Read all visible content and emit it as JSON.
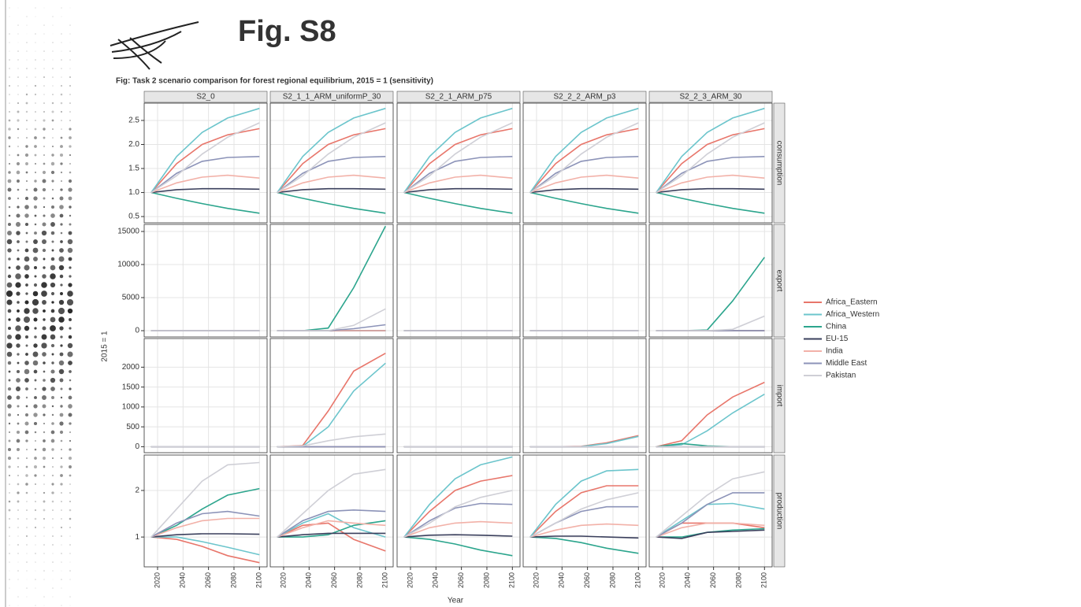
{
  "header": {
    "title": "Fig. S8"
  },
  "chart_data": {
    "type": "line",
    "title": "Fig: Task 2 scenario comparison for forest regional equilibrium, 2015 = 1 (sensitivity)",
    "ylabel": "2015 = 1",
    "xlabel": "Year",
    "grid": true,
    "legend": "right",
    "x": [
      2015,
      2035,
      2055,
      2075,
      2100
    ],
    "xlim": [
      2009.5,
      2106
    ],
    "xticks": [
      2020,
      2040,
      2060,
      2080,
      2100
    ],
    "columns": [
      "S2_0",
      "S2_1_1_ARM_uniformP_30",
      "S2_2_1_ARM_p75",
      "S2_2_2_ARM_p3",
      "S2_2_3_ARM_30"
    ],
    "rows": [
      {
        "name": "consumption",
        "ylim": [
          0.37,
          2.86
        ],
        "yticks": [
          0.5,
          {
            "value": 1,
            "label": "1.0"
          },
          1.5,
          {
            "value": 2,
            "label": "2.0"
          },
          2.5
        ]
      },
      {
        "name": "export",
        "ylim": [
          -950,
          16070
        ],
        "yticks": [
          0,
          5000,
          10000,
          15000
        ]
      },
      {
        "name": "import",
        "ylim": [
          -150,
          2720
        ],
        "yticks": [
          0,
          500,
          1000,
          1500,
          2000
        ]
      },
      {
        "name": "production",
        "ylim": [
          0.36,
          2.76
        ],
        "yticks": [
          1,
          2
        ]
      }
    ],
    "series": [
      {
        "name": "Africa_Eastern",
        "color": "#e8766b",
        "values": [
          [
            [
              1,
              1.6,
              2.0,
              2.2,
              2.33
            ],
            [
              1,
              1.6,
              2.0,
              2.2,
              2.33
            ],
            [
              1,
              1.6,
              2.0,
              2.2,
              2.33
            ],
            [
              1,
              1.6,
              2.0,
              2.2,
              2.33
            ],
            [
              1,
              1.6,
              2.0,
              2.2,
              2.33
            ]
          ],
          [
            [
              1,
              1,
              1,
              1,
              1
            ],
            [
              1,
              1,
              1,
              1,
              1
            ],
            [
              1,
              1,
              1,
              1,
              1
            ],
            [
              1,
              1,
              1,
              1,
              1
            ],
            [
              1,
              1,
              1,
              1,
              1
            ]
          ],
          [
            [
              1,
              1,
              1,
              1,
              1
            ],
            [
              1,
              30,
              900,
              1900,
              2350
            ],
            [
              1,
              1,
              1,
              1,
              1
            ],
            [
              1,
              1,
              10,
              100,
              280
            ],
            [
              1,
              150,
              800,
              1250,
              1620
            ]
          ],
          [
            [
              1,
              0.95,
              0.8,
              0.6,
              0.45
            ],
            [
              1,
              1.25,
              1.3,
              0.95,
              0.7
            ],
            [
              1,
              1.55,
              2.0,
              2.2,
              2.32
            ],
            [
              1,
              1.55,
              1.95,
              2.1,
              2.1
            ],
            [
              1,
              1.3,
              1.3,
              1.3,
              1.2
            ]
          ]
        ]
      },
      {
        "name": "Africa_Western",
        "color": "#6cc5cc",
        "values": [
          [
            [
              1,
              1.75,
              2.25,
              2.55,
              2.75
            ],
            [
              1,
              1.75,
              2.25,
              2.55,
              2.75
            ],
            [
              1,
              1.75,
              2.25,
              2.55,
              2.75
            ],
            [
              1,
              1.75,
              2.25,
              2.55,
              2.75
            ],
            [
              1,
              1.75,
              2.25,
              2.55,
              2.75
            ]
          ],
          [
            [
              1,
              1,
              1,
              1,
              1
            ],
            [
              1,
              1,
              1,
              1,
              1
            ],
            [
              1,
              1,
              1,
              1,
              1
            ],
            [
              1,
              1,
              1,
              1,
              1
            ],
            [
              1,
              1,
              1,
              1,
              1
            ]
          ],
          [
            [
              1,
              1,
              1,
              1,
              1
            ],
            [
              1,
              10,
              500,
              1400,
              2100
            ],
            [
              1,
              1,
              1,
              1,
              1
            ],
            [
              1,
              1,
              5,
              80,
              260
            ],
            [
              1,
              50,
              400,
              850,
              1320
            ]
          ],
          [
            [
              1,
              1.0,
              0.9,
              0.78,
              0.62
            ],
            [
              1,
              1.3,
              1.5,
              1.2,
              1.0
            ],
            [
              1,
              1.7,
              2.25,
              2.55,
              2.72
            ],
            [
              1,
              1.7,
              2.2,
              2.42,
              2.45
            ],
            [
              1,
              1.35,
              1.7,
              1.72,
              1.6
            ]
          ]
        ]
      },
      {
        "name": "China",
        "color": "#2ca58d",
        "values": [
          [
            [
              1,
              0.88,
              0.77,
              0.67,
              0.57
            ],
            [
              1,
              0.88,
              0.77,
              0.67,
              0.57
            ],
            [
              1,
              0.88,
              0.77,
              0.67,
              0.57
            ],
            [
              1,
              0.88,
              0.77,
              0.67,
              0.57
            ],
            [
              1,
              0.88,
              0.77,
              0.67,
              0.57
            ]
          ],
          [
            [
              1,
              1,
              1,
              1,
              1
            ],
            [
              1,
              1,
              400,
              6500,
              15800
            ],
            [
              1,
              1,
              1,
              1,
              1
            ],
            [
              1,
              1,
              1,
              1,
              1
            ],
            [
              1,
              1,
              100,
              4500,
              11100
            ]
          ],
          [
            [
              1,
              1,
              1,
              1,
              1
            ],
            [
              1,
              1,
              1,
              1,
              1
            ],
            [
              1,
              1,
              1,
              1,
              1
            ],
            [
              1,
              1,
              1,
              1,
              1
            ],
            [
              1,
              80,
              20,
              1,
              1
            ]
          ],
          [
            [
              1,
              1.25,
              1.6,
              1.9,
              2.04
            ],
            [
              1,
              1.0,
              1.05,
              1.25,
              1.35
            ],
            [
              1,
              0.95,
              0.85,
              0.72,
              0.6
            ],
            [
              1,
              0.97,
              0.88,
              0.76,
              0.65
            ],
            [
              1,
              1.0,
              1.1,
              1.15,
              1.18
            ]
          ]
        ]
      },
      {
        "name": "EU-15",
        "color": "#3a3f5c",
        "values": [
          [
            [
              1,
              1.06,
              1.08,
              1.08,
              1.07
            ],
            [
              1,
              1.06,
              1.08,
              1.08,
              1.07
            ],
            [
              1,
              1.06,
              1.08,
              1.08,
              1.07
            ],
            [
              1,
              1.06,
              1.08,
              1.08,
              1.07
            ],
            [
              1,
              1.06,
              1.08,
              1.08,
              1.07
            ]
          ],
          [
            [
              1,
              1,
              1,
              1,
              1
            ],
            [
              1,
              1,
              1,
              1,
              1
            ],
            [
              1,
              1,
              1,
              1,
              1
            ],
            [
              1,
              1,
              1,
              1,
              1
            ],
            [
              1,
              1,
              1,
              1,
              1
            ]
          ],
          [
            [
              1,
              1,
              1,
              1,
              1
            ],
            [
              1,
              1,
              1,
              1,
              1
            ],
            [
              1,
              1,
              1,
              1,
              1
            ],
            [
              1,
              1,
              1,
              1,
              1
            ],
            [
              1,
              1,
              1,
              1,
              1
            ]
          ],
          [
            [
              1,
              1.05,
              1.07,
              1.07,
              1.06
            ],
            [
              1,
              1.05,
              1.08,
              1.08,
              1.08
            ],
            [
              1,
              1.04,
              1.05,
              1.04,
              1.02
            ],
            [
              1,
              1.02,
              1.02,
              1.0,
              0.98
            ],
            [
              1,
              0.97,
              1.1,
              1.12,
              1.15
            ]
          ]
        ]
      },
      {
        "name": "India",
        "color": "#f2b1a8",
        "values": [
          [
            [
              1,
              1.2,
              1.32,
              1.36,
              1.3
            ],
            [
              1,
              1.2,
              1.32,
              1.36,
              1.3
            ],
            [
              1,
              1.2,
              1.32,
              1.36,
              1.3
            ],
            [
              1,
              1.2,
              1.32,
              1.36,
              1.3
            ],
            [
              1,
              1.2,
              1.32,
              1.36,
              1.3
            ]
          ],
          [
            [
              1,
              1,
              1,
              1,
              1
            ],
            [
              1,
              1,
              1,
              1,
              1
            ],
            [
              1,
              1,
              1,
              1,
              1
            ],
            [
              1,
              1,
              1,
              1,
              1
            ],
            [
              1,
              1,
              1,
              1,
              1
            ]
          ],
          [
            [
              1,
              1,
              1,
              1,
              1
            ],
            [
              1,
              1,
              1,
              1,
              1
            ],
            [
              1,
              1,
              1,
              1,
              1
            ],
            [
              1,
              1,
              1,
              1,
              1
            ],
            [
              1,
              1,
              1,
              1,
              1
            ]
          ],
          [
            [
              1,
              1.2,
              1.35,
              1.4,
              1.4
            ],
            [
              1,
              1.2,
              1.35,
              1.3,
              1.25
            ],
            [
              1,
              1.2,
              1.3,
              1.33,
              1.3
            ],
            [
              1,
              1.15,
              1.25,
              1.28,
              1.25
            ],
            [
              1,
              1.2,
              1.3,
              1.3,
              1.25
            ]
          ]
        ]
      },
      {
        "name": "Middle East",
        "color": "#8c93b8",
        "values": [
          [
            [
              1,
              1.4,
              1.65,
              1.73,
              1.75
            ],
            [
              1,
              1.4,
              1.65,
              1.73,
              1.75
            ],
            [
              1,
              1.4,
              1.65,
              1.73,
              1.75
            ],
            [
              1,
              1.4,
              1.65,
              1.73,
              1.75
            ],
            [
              1,
              1.4,
              1.65,
              1.73,
              1.75
            ]
          ],
          [
            [
              1,
              1,
              1,
              1,
              1
            ],
            [
              1,
              1,
              1,
              300,
              900
            ],
            [
              1,
              1,
              1,
              1,
              1
            ],
            [
              1,
              1,
              1,
              1,
              1
            ],
            [
              1,
              1,
              1,
              1,
              1
            ]
          ],
          [
            [
              1,
              1,
              1,
              1,
              1
            ],
            [
              1,
              1,
              1,
              1,
              1
            ],
            [
              1,
              1,
              1,
              1,
              1
            ],
            [
              1,
              1,
              1,
              1,
              1
            ],
            [
              1,
              1,
              1,
              1,
              1
            ]
          ],
          [
            [
              1,
              1.3,
              1.5,
              1.55,
              1.45
            ],
            [
              1,
              1.35,
              1.55,
              1.58,
              1.55
            ],
            [
              1,
              1.35,
              1.62,
              1.72,
              1.7
            ],
            [
              1,
              1.3,
              1.55,
              1.65,
              1.65
            ],
            [
              1,
              1.3,
              1.7,
              1.95,
              1.95
            ]
          ]
        ]
      },
      {
        "name": "Pakistan",
        "color": "#cfcfd6",
        "values": [
          [
            [
              1,
              1.35,
              1.8,
              2.15,
              2.45
            ],
            [
              1,
              1.35,
              1.8,
              2.15,
              2.45
            ],
            [
              1,
              1.35,
              1.8,
              2.15,
              2.45
            ],
            [
              1,
              1.35,
              1.8,
              2.15,
              2.45
            ],
            [
              1,
              1.35,
              1.8,
              2.15,
              2.45
            ]
          ],
          [
            [
              1,
              1,
              1,
              1,
              1
            ],
            [
              1,
              1,
              1,
              800,
              3300
            ],
            [
              1,
              1,
              1,
              1,
              1
            ],
            [
              1,
              1,
              1,
              1,
              1
            ],
            [
              1,
              1,
              1,
              200,
              2200
            ]
          ],
          [
            [
              1,
              1,
              1,
              1,
              1
            ],
            [
              1,
              20,
              150,
              250,
              320
            ],
            [
              1,
              1,
              1,
              1,
              1
            ],
            [
              1,
              1,
              1,
              1,
              1
            ],
            [
              1,
              1,
              1,
              1,
              1
            ]
          ],
          [
            [
              1,
              1.6,
              2.2,
              2.55,
              2.6
            ],
            [
              1,
              1.5,
              2.0,
              2.35,
              2.45
            ],
            [
              1,
              1.3,
              1.65,
              1.85,
              2.0
            ],
            [
              1,
              1.3,
              1.6,
              1.8,
              1.95
            ],
            [
              1,
              1.45,
              1.9,
              2.25,
              2.4
            ]
          ]
        ]
      }
    ]
  }
}
